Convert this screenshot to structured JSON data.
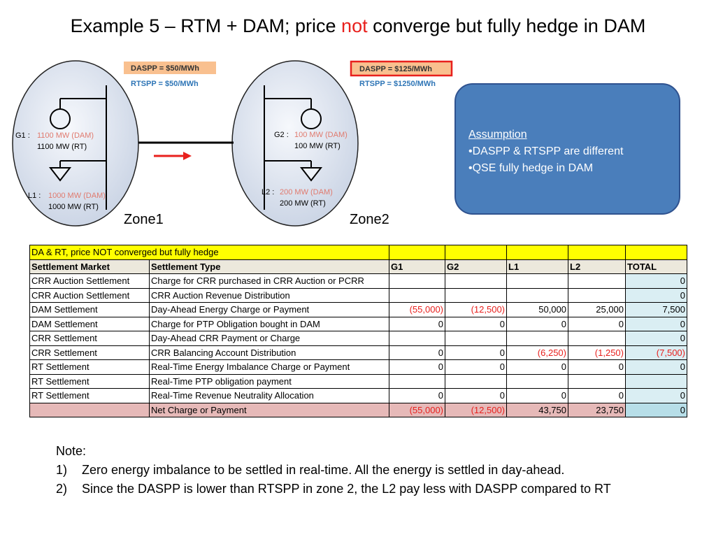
{
  "title": {
    "pre": "Example 5 – RTM + DAM; price ",
    "highlight": "not",
    "post": " converge but fully hedge in DAM"
  },
  "zone1": {
    "label": "Zone1",
    "daspp": "DASPP = $50/MWh",
    "rtspp": "RTSPP = $50/MWh",
    "g_prefix": "G1 : ",
    "g_da": "1100 MW (DAM)",
    "g_rt": "1100 MW (RT)",
    "l_prefix": "L1 : ",
    "l_da": "1000 MW (DAM)",
    "l_rt": "1000 MW (RT)"
  },
  "zone2": {
    "label": "Zone2",
    "daspp": "DASPP = $125/MWh",
    "rtspp": "RTSPP = $1250/MWh",
    "g_prefix": "G2 : ",
    "g_da": "100 MW (DAM)",
    "g_rt": "100 MW (RT)",
    "l_prefix": "L2 : ",
    "l_da": "200 MW (DAM)",
    "l_rt": "200 MW (RT)"
  },
  "assumption": {
    "head": "Assumption",
    "items": [
      "•DASPP & RTSPP are different",
      "•QSE fully hedge in DAM"
    ]
  },
  "table": {
    "caption": "DA & RT, price NOT converged but fully hedge",
    "headers": [
      "Settlement Market",
      "Settlement Type",
      "G1",
      "G2",
      "L1",
      "L2",
      "TOTAL"
    ],
    "rows": [
      [
        "CRR Auction Settlement",
        "Charge for CRR purchased in CRR Auction or PCRR",
        "",
        "",
        "",
        "",
        "0"
      ],
      [
        "CRR Auction Settlement",
        "CRR Auction Revenue Distribution",
        "",
        "",
        "",
        "",
        "0"
      ],
      [
        "DAM Settlement",
        "Day-Ahead Energy Charge or Payment",
        "(55,000)",
        "(12,500)",
        "50,000",
        "25,000",
        "7,500"
      ],
      [
        "DAM Settlement",
        "Charge for PTP Obligation bought in DAM",
        "0",
        "0",
        "0",
        "0",
        "0"
      ],
      [
        "CRR Settlement",
        "Day-Ahead CRR Payment or Charge",
        "",
        "",
        "",
        "",
        "0"
      ],
      [
        "CRR Settlement",
        "CRR Balancing Account Distribution",
        "0",
        "0",
        "(6,250)",
        "(1,250)",
        "(7,500)"
      ],
      [
        "RT Settlement",
        "Real-Time Energy Imbalance Charge or Payment",
        "0",
        "0",
        "0",
        "0",
        "0"
      ],
      [
        "RT Settlement",
        "Real-Time PTP obligation payment",
        "",
        "",
        "",
        "",
        ""
      ],
      [
        "RT Settlement",
        "Real-Time Revenue Neutrality Allocation",
        "0",
        "0",
        "0",
        "0",
        "0"
      ]
    ],
    "net": [
      "",
      "Net Charge or Payment",
      "(55,000)",
      "(12,500)",
      "43,750",
      "23,750",
      "0"
    ]
  },
  "notes": {
    "head": "Note:",
    "items": [
      {
        "n": "1)",
        "text": "Zero energy imbalance to be settled in real-time. All the energy is settled in day-ahead."
      },
      {
        "n": "2)",
        "text": "Since the DASPP is lower than RTSPP in zone 2, the L2 pay less with DASPP compared to RT"
      }
    ]
  },
  "colors": {
    "negative": "#e8201d",
    "daspp_fill": "#f9c08f",
    "rtspp_text": "#2e75b6",
    "assumption_fill": "#4a7ebb"
  }
}
